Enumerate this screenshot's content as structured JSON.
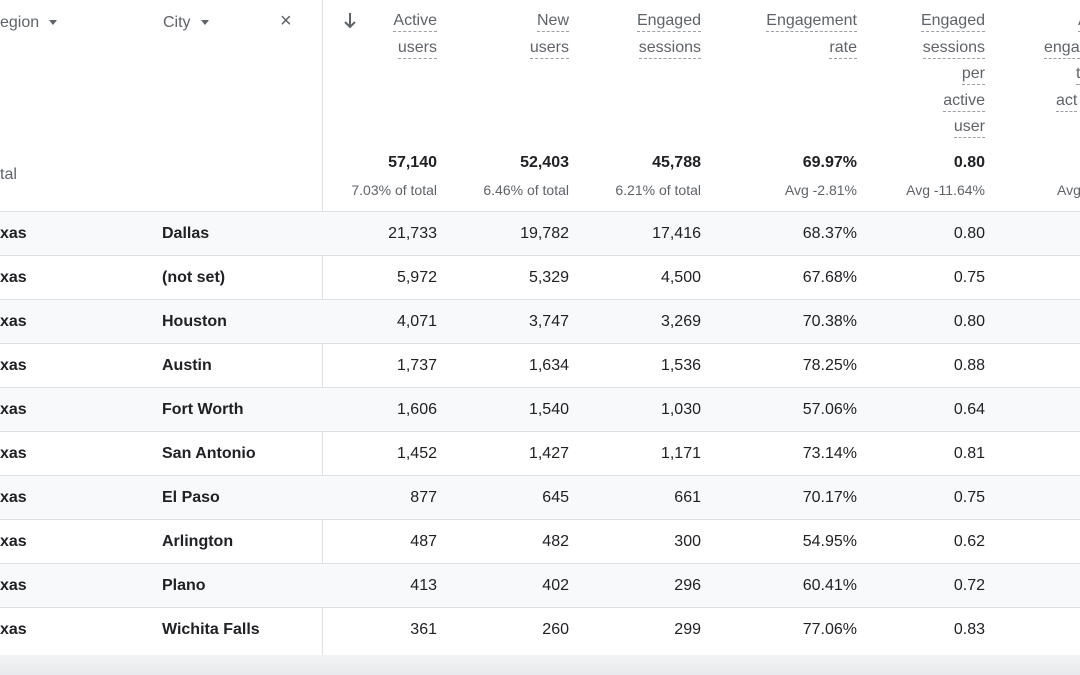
{
  "dimensions": {
    "region_label": "egion",
    "city_label": "City",
    "clear_label": "×"
  },
  "metrics": {
    "active_users": [
      "Active",
      "users"
    ],
    "new_users": [
      "New",
      "users"
    ],
    "engaged_sessions": [
      "Engaged",
      "sessions"
    ],
    "engagement_rate": [
      "Engagement",
      "rate"
    ],
    "engaged_per_user": [
      "Engaged",
      "sessions",
      "per",
      "active",
      "user"
    ],
    "partial": [
      "A",
      "enga",
      "t",
      "act"
    ]
  },
  "totals": {
    "label": "tal",
    "active_users": "57,140",
    "active_users_sub": "7.03% of total",
    "new_users": "52,403",
    "new_users_sub": "6.46% of total",
    "engaged_sessions": "45,788",
    "engaged_sessions_sub": "6.21% of total",
    "engagement_rate": "69.97%",
    "engagement_rate_sub": "Avg -2.81%",
    "engaged_per_user": "0.80",
    "engaged_per_user_sub": "Avg -11.64%",
    "partial_sub": "Avg"
  },
  "rows": [
    {
      "region": "xas",
      "city": "Dallas",
      "active": "21,733",
      "new": "19,782",
      "engaged": "17,416",
      "rate": "68.37%",
      "per_user": "0.80"
    },
    {
      "region": "xas",
      "city": "(not set)",
      "active": "5,972",
      "new": "5,329",
      "engaged": "4,500",
      "rate": "67.68%",
      "per_user": "0.75"
    },
    {
      "region": "xas",
      "city": "Houston",
      "active": "4,071",
      "new": "3,747",
      "engaged": "3,269",
      "rate": "70.38%",
      "per_user": "0.80"
    },
    {
      "region": "xas",
      "city": "Austin",
      "active": "1,737",
      "new": "1,634",
      "engaged": "1,536",
      "rate": "78.25%",
      "per_user": "0.88"
    },
    {
      "region": "xas",
      "city": "Fort Worth",
      "active": "1,606",
      "new": "1,540",
      "engaged": "1,030",
      "rate": "57.06%",
      "per_user": "0.64"
    },
    {
      "region": "xas",
      "city": "San Antonio",
      "active": "1,452",
      "new": "1,427",
      "engaged": "1,171",
      "rate": "73.14%",
      "per_user": "0.81"
    },
    {
      "region": "xas",
      "city": "El Paso",
      "active": "877",
      "new": "645",
      "engaged": "661",
      "rate": "70.17%",
      "per_user": "0.75"
    },
    {
      "region": "xas",
      "city": "Arlington",
      "active": "487",
      "new": "482",
      "engaged": "300",
      "rate": "54.95%",
      "per_user": "0.62"
    },
    {
      "region": "xas",
      "city": "Plano",
      "active": "413",
      "new": "402",
      "engaged": "296",
      "rate": "60.41%",
      "per_user": "0.72"
    },
    {
      "region": "xas",
      "city": "Wichita Falls",
      "active": "361",
      "new": "260",
      "engaged": "299",
      "rate": "77.06%",
      "per_user": "0.83"
    }
  ],
  "icons": {
    "sort": "arrow-down-icon",
    "dropdown": "caret-down-icon",
    "clear": "close-icon"
  }
}
